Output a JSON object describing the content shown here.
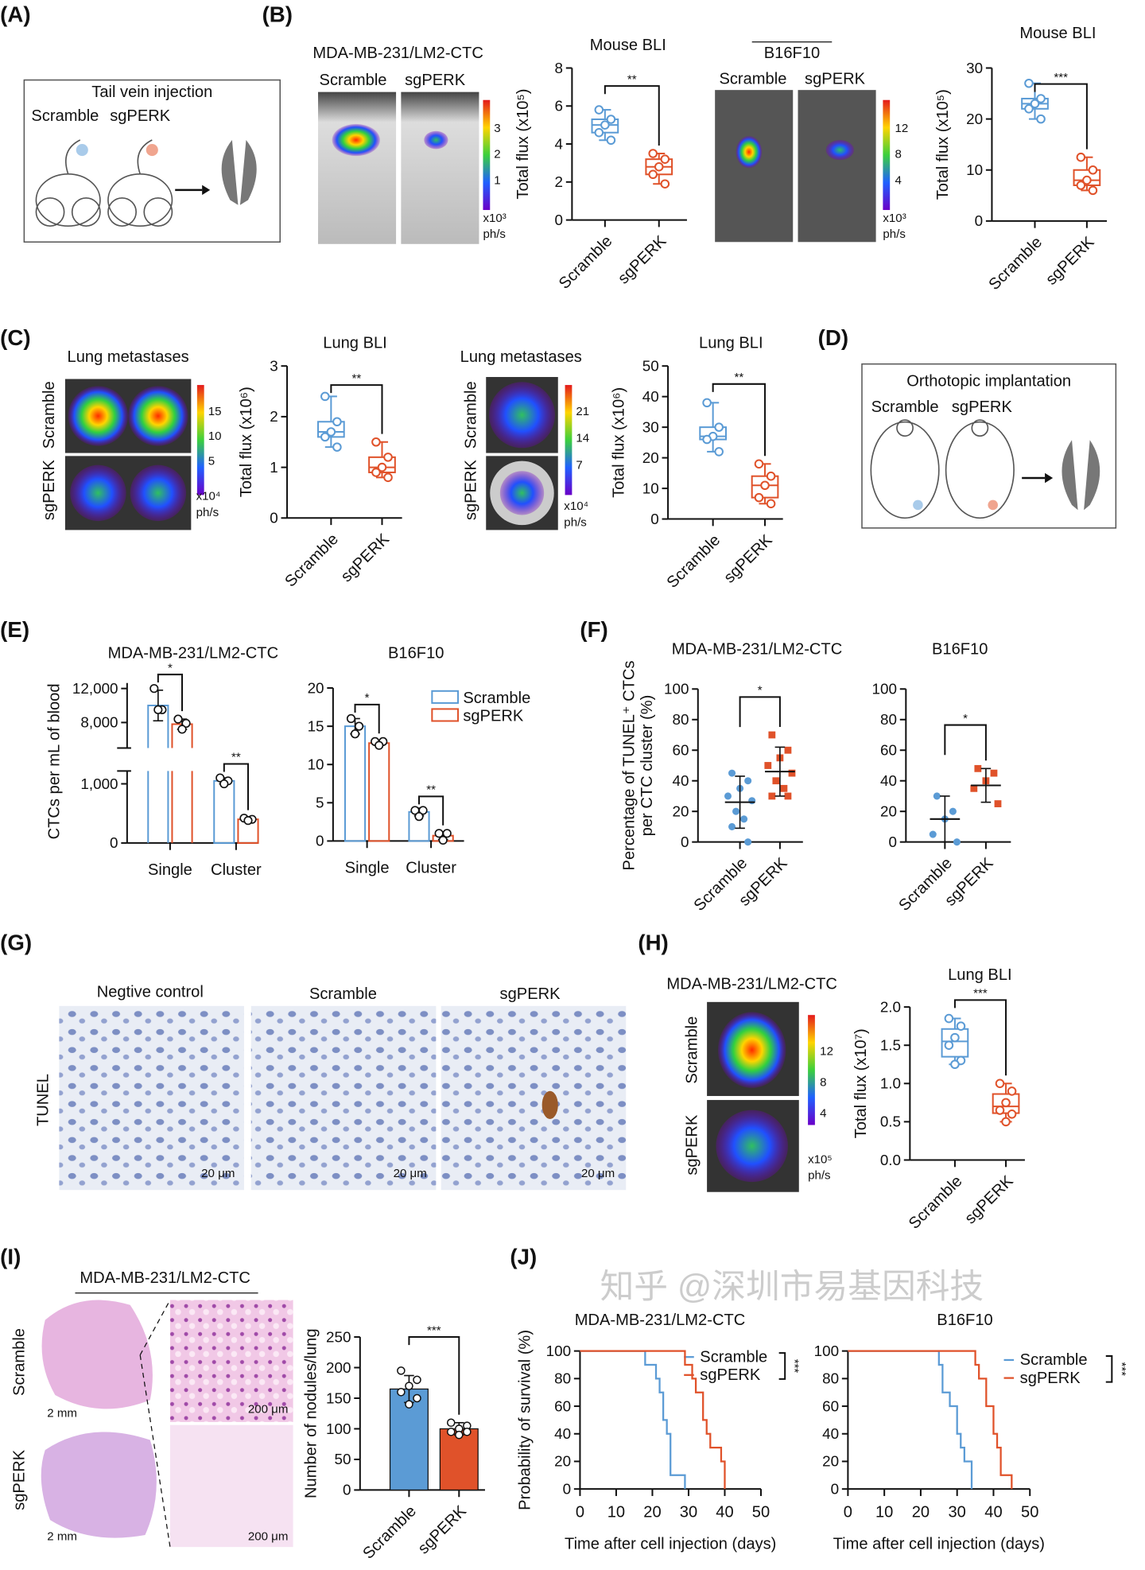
{
  "panel_labels": [
    "(A)",
    "(B)",
    "(C)",
    "(D)",
    "(E)",
    "(F)",
    "(G)",
    "(H)",
    "(I)",
    "(J)"
  ],
  "colors": {
    "scramble": "#5b9bd5",
    "sgperk": "#e0522a"
  },
  "A": {
    "title": "Tail vein injection",
    "scramble": "Scramble",
    "sgperk": "sgPERK"
  },
  "B": {
    "cell_line1": "MDA-MB-231/LM2-CTC",
    "cell_line2": "B16F10",
    "scramble": "Scramble",
    "sgperk": "sgPERK",
    "colorbar1": [
      "3",
      "2",
      "1"
    ],
    "colorbar2": [
      "12",
      "8",
      "4"
    ],
    "unit1": "x10³",
    "unit2": "x10³",
    "ph": "ph/s"
  },
  "C": {
    "title": "Lung metastases",
    "row1": "Scramble",
    "row2": "sgPERK",
    "colorbar1": [
      "15",
      "10",
      "5"
    ],
    "colorbar2": [
      "21",
      "14",
      "7"
    ],
    "unit": "x10⁴",
    "ph": "ph/s"
  },
  "D": {
    "title": "Orthotopic implantation",
    "scramble": "Scramble",
    "sgperk": "sgPERK"
  },
  "G": {
    "cols": [
      "Negtive control",
      "Scramble",
      "sgPERK"
    ],
    "row": "TUNEL",
    "scale": "20 μm"
  },
  "H": {
    "cell_line": "MDA-MB-231/LM2-CTC",
    "row1": "Scramble",
    "row2": "sgPERK",
    "colorbar": [
      "12",
      "8",
      "4"
    ],
    "unit": "x10⁵",
    "ph": "ph/s"
  },
  "I": {
    "cell_line": "MDA-MB-231/LM2-CTC",
    "row1": "Scramble",
    "row2": "sgPERK",
    "scale1": "2 mm",
    "scale2": "200 μm"
  },
  "watermark": "知乎 @深圳市易基因科技",
  "chart_data": [
    {
      "type": "box",
      "panel": "B",
      "title": "Mouse BLI",
      "ylabel": "Total flux (x10⁵)",
      "ylim": [
        0,
        8
      ],
      "yticks": [
        "0",
        "2",
        "4",
        "6",
        "8"
      ],
      "categories": [
        "Scramble",
        "sgPERK"
      ],
      "significance": "**",
      "series": [
        {
          "name": "Scramble",
          "points": [
            5.8,
            5.3,
            5.0,
            4.6,
            4.2
          ]
        },
        {
          "name": "sgPERK",
          "points": [
            3.5,
            3.2,
            2.8,
            2.4,
            1.9
          ]
        }
      ]
    },
    {
      "type": "box",
      "panel": "B",
      "title": "Mouse BLI",
      "ylabel": "Total flux (x10⁵)",
      "ylim": [
        0,
        30
      ],
      "yticks": [
        "0",
        "10",
        "20",
        "30"
      ],
      "categories": [
        "Scramble",
        "sgPERK"
      ],
      "significance": "***",
      "series": [
        {
          "name": "Scramble",
          "points": [
            27,
            24,
            23,
            22,
            20
          ]
        },
        {
          "name": "sgPERK",
          "points": [
            12.5,
            10,
            8,
            7,
            6
          ]
        }
      ]
    },
    {
      "type": "box",
      "panel": "C",
      "title": "Lung BLI",
      "ylabel": "Total flux (x10⁶)",
      "ylim": [
        0,
        3
      ],
      "yticks": [
        "0",
        "1",
        "2",
        "3"
      ],
      "categories": [
        "Scramble",
        "sgPERK"
      ],
      "significance": "**",
      "series": [
        {
          "name": "Scramble",
          "points": [
            2.4,
            1.9,
            1.7,
            1.6,
            1.4
          ]
        },
        {
          "name": "sgPERK",
          "points": [
            1.5,
            1.2,
            1.0,
            0.9,
            0.8
          ]
        }
      ]
    },
    {
      "type": "box",
      "panel": "C",
      "title": "Lung BLI",
      "ylabel": "Total flux (x10⁶)",
      "ylim": [
        0,
        50
      ],
      "yticks": [
        "0",
        "10",
        "20",
        "30",
        "40",
        "50"
      ],
      "categories": [
        "Scramble",
        "sgPERK"
      ],
      "significance": "**",
      "series": [
        {
          "name": "Scramble",
          "points": [
            38,
            30,
            27,
            26,
            22
          ]
        },
        {
          "name": "sgPERK",
          "points": [
            18,
            14,
            11,
            7,
            5
          ]
        }
      ]
    },
    {
      "type": "bar",
      "panel": "E",
      "title": "MDA-MB-231/LM2-CTC",
      "ylabel": "CTCs per mL of blood",
      "axis_break": [
        1200,
        5000
      ],
      "ylim": [
        0,
        13000
      ],
      "yticks": [
        "0",
        "1,000",
        "8,000",
        "12,000"
      ],
      "categories": [
        "Single",
        "Cluster"
      ],
      "significance": [
        "*",
        "**"
      ],
      "series": [
        {
          "name": "Scramble",
          "values": [
            10000,
            1050
          ],
          "sd": [
            1800,
            50
          ],
          "points": [
            [
              12000,
              9500,
              9500
            ],
            [
              1100,
              1050,
              1000
            ]
          ]
        },
        {
          "name": "sgPERK",
          "values": [
            7800,
            400
          ],
          "sd": [
            600,
            20
          ],
          "points": [
            [
              8400,
              7900,
              7200
            ],
            [
              420,
              400,
              380
            ]
          ]
        }
      ]
    },
    {
      "type": "bar",
      "panel": "E",
      "title": "B16F10",
      "ylabel": "",
      "ylim": [
        0,
        20
      ],
      "yticks": [
        "0",
        "5",
        "10",
        "15",
        "20"
      ],
      "categories": [
        "Single",
        "Cluster"
      ],
      "significance": [
        "*",
        "**"
      ],
      "legend": [
        "Scramble",
        "sgPERK"
      ],
      "series": [
        {
          "name": "Scramble",
          "values": [
            15,
            3.8
          ],
          "sd": [
            1,
            0.5
          ],
          "points": [
            [
              16,
              15,
              14
            ],
            [
              4,
              4,
              3.2
            ]
          ]
        },
        {
          "name": "sgPERK",
          "values": [
            12.8,
            0.7
          ],
          "sd": [
            0.3,
            0.5
          ],
          "points": [
            [
              13,
              13,
              12.5
            ],
            [
              1,
              1,
              0.1
            ]
          ]
        }
      ]
    },
    {
      "type": "scatter",
      "panel": "F",
      "title": "MDA-MB-231/LM2-CTC",
      "ylabel": "Percentage of TUNEL⁺ CTCs",
      "ylabel2": "per CTC cluster (%)",
      "ylim": [
        0,
        100
      ],
      "yticks": [
        "0",
        "20",
        "40",
        "60",
        "80",
        "100"
      ],
      "categories": [
        "Scramble",
        "sgPERK"
      ],
      "significance": "*",
      "series": [
        {
          "name": "Scramble",
          "mean": 26,
          "sd": 17,
          "points": [
            45,
            40,
            35,
            30,
            27,
            20,
            15,
            10,
            0
          ]
        },
        {
          "name": "sgPERK",
          "mean": 46,
          "sd": 16,
          "points": [
            70,
            60,
            55,
            50,
            45,
            40,
            35,
            30,
            30
          ]
        }
      ]
    },
    {
      "type": "scatter",
      "panel": "F",
      "title": "B16F10",
      "ylabel": "",
      "ylim": [
        0,
        100
      ],
      "yticks": [
        "0",
        "20",
        "40",
        "60",
        "80",
        "100"
      ],
      "categories": [
        "Scramble",
        "sgPERK"
      ],
      "significance": "*",
      "series": [
        {
          "name": "Scramble",
          "mean": 15,
          "sd": 15,
          "points": [
            30,
            20,
            15,
            5,
            0
          ]
        },
        {
          "name": "sgPERK",
          "mean": 37,
          "sd": 11,
          "points": [
            48,
            45,
            40,
            35,
            25
          ]
        }
      ]
    },
    {
      "type": "box",
      "panel": "H",
      "title": "Lung BLI",
      "ylabel": "Total flux (x10⁷)",
      "ylim": [
        0,
        2
      ],
      "yticks": [
        "0.0",
        "0.5",
        "1.0",
        "1.5",
        "2.0"
      ],
      "categories": [
        "Scramble",
        "sgPERK"
      ],
      "significance": "***",
      "series": [
        {
          "name": "Scramble",
          "points": [
            1.85,
            1.75,
            1.6,
            1.5,
            1.3,
            1.25
          ]
        },
        {
          "name": "sgPERK",
          "points": [
            1.0,
            0.9,
            0.75,
            0.65,
            0.6,
            0.5
          ]
        }
      ]
    },
    {
      "type": "bar",
      "panel": "I",
      "title": "",
      "ylabel": "Number of nodules/lung",
      "ylim": [
        0,
        250
      ],
      "yticks": [
        "0",
        "50",
        "100",
        "150",
        "200",
        "250"
      ],
      "categories": [
        "Scramble",
        "sgPERK"
      ],
      "significance": "***",
      "series": [
        {
          "name": "Scramble",
          "value": 165,
          "sd": 22,
          "points": [
            195,
            180,
            170,
            160,
            150,
            140
          ]
        },
        {
          "name": "sgPERK",
          "value": 100,
          "sd": 10,
          "points": [
            110,
            105,
            100,
            95,
            95,
            90
          ]
        }
      ]
    },
    {
      "type": "line",
      "panel": "J",
      "title": "MDA-MB-231/LM2-CTC",
      "ylabel": "Probability of survival (%)",
      "xlabel": "Time after cell injection (days)",
      "xlim": [
        0,
        50
      ],
      "ylim": [
        0,
        100
      ],
      "xticks": [
        "0",
        "10",
        "20",
        "30",
        "40",
        "50"
      ],
      "yticks": [
        "0",
        "20",
        "40",
        "60",
        "80",
        "100"
      ],
      "significance": "***",
      "series": [
        {
          "name": "Scramble",
          "steps": [
            [
              18,
              90
            ],
            [
              21,
              80
            ],
            [
              22,
              70
            ],
            [
              23,
              50
            ],
            [
              24,
              40
            ],
            [
              25,
              10
            ],
            [
              29,
              0
            ]
          ]
        },
        {
          "name": "sgPERK",
          "steps": [
            [
              29,
              90
            ],
            [
              31,
              80
            ],
            [
              32,
              70
            ],
            [
              34,
              50
            ],
            [
              35,
              40
            ],
            [
              36,
              30
            ],
            [
              39,
              20
            ],
            [
              40,
              0
            ]
          ]
        }
      ]
    },
    {
      "type": "line",
      "panel": "J",
      "title": "B16F10",
      "ylabel": "",
      "xlabel": "Time after cell injection (days)",
      "xlim": [
        0,
        50
      ],
      "ylim": [
        0,
        100
      ],
      "xticks": [
        "0",
        "10",
        "20",
        "30",
        "40",
        "50"
      ],
      "yticks": [
        "0",
        "20",
        "40",
        "60",
        "80",
        "100"
      ],
      "significance": "***",
      "series": [
        {
          "name": "Scramble",
          "steps": [
            [
              25,
              90
            ],
            [
              26,
              70
            ],
            [
              28,
              60
            ],
            [
              30,
              40
            ],
            [
              31,
              30
            ],
            [
              32,
              20
            ],
            [
              34,
              0
            ]
          ]
        },
        {
          "name": "sgPERK",
          "steps": [
            [
              35,
              90
            ],
            [
              36,
              80
            ],
            [
              38,
              60
            ],
            [
              40,
              40
            ],
            [
              41,
              30
            ],
            [
              42,
              10
            ],
            [
              45,
              0
            ]
          ]
        }
      ]
    }
  ]
}
